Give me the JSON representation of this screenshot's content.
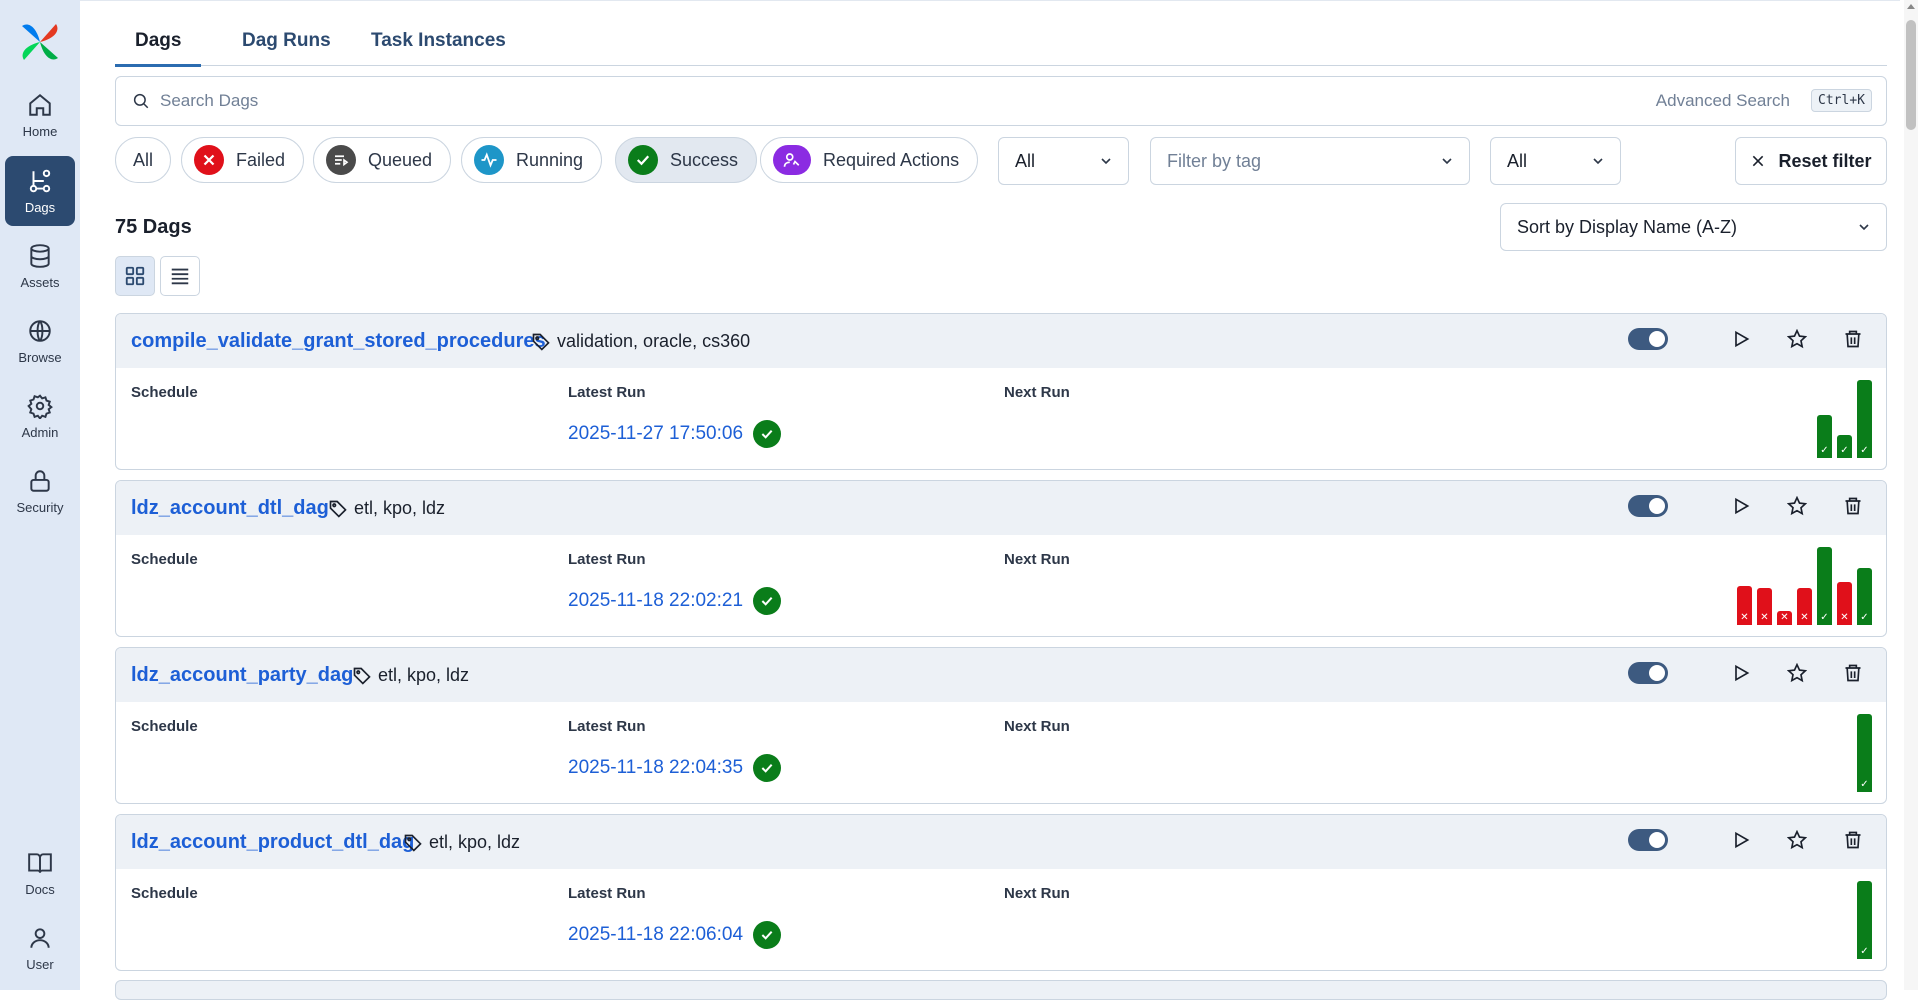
{
  "sidebar": {
    "logo": "airflow-logo",
    "items": [
      {
        "label": "Home",
        "icon": "home-icon"
      },
      {
        "label": "Dags",
        "icon": "dags-icon",
        "active": true
      },
      {
        "label": "Assets",
        "icon": "database-icon"
      },
      {
        "label": "Browse",
        "icon": "globe-icon"
      },
      {
        "label": "Admin",
        "icon": "gear-icon"
      },
      {
        "label": "Security",
        "icon": "lock-icon"
      }
    ],
    "bottom_items": [
      {
        "label": "Docs",
        "icon": "book-icon"
      },
      {
        "label": "User",
        "icon": "user-icon"
      }
    ]
  },
  "tabs": [
    {
      "label": "Dags",
      "active": true
    },
    {
      "label": "Dag Runs"
    },
    {
      "label": "Task Instances"
    }
  ],
  "search": {
    "placeholder": "Search Dags",
    "advanced_label": "Advanced Search",
    "shortcut": "Ctrl+K"
  },
  "filters": {
    "state_pills": [
      {
        "label": "All"
      },
      {
        "label": "Failed",
        "color": "#e0101a",
        "icon": "x-circle-icon"
      },
      {
        "label": "Queued",
        "color": "#4a4a4a",
        "icon": "queue-icon"
      },
      {
        "label": "Running",
        "color": "#1e96c8",
        "icon": "activity-icon"
      },
      {
        "label": "Success",
        "color": "#0a7d1a",
        "icon": "check-icon",
        "selected": true
      },
      {
        "label": "Required Actions",
        "color": "#8b2be2",
        "icon": "user-action-icon"
      }
    ],
    "paused_select": "All",
    "tag_select_placeholder": "Filter by tag",
    "tag_mode_select": "All",
    "reset_label": "Reset filter"
  },
  "dag_count": "75 Dags",
  "sort_label": "Sort by Display Name (A-Z)",
  "column_labels": {
    "schedule": "Schedule",
    "latest_run": "Latest Run",
    "next_run": "Next Run"
  },
  "dags": [
    {
      "name": "compile_validate_grant_stored_procedures",
      "tags": "validation, oracle, cs360",
      "latest_run": "2025-11-27 17:50:06",
      "latest_state": "success",
      "recent_runs": [
        {
          "state": "success",
          "duration_rel": 0.55
        },
        {
          "state": "success",
          "duration_rel": 0.3
        },
        {
          "state": "success",
          "duration_rel": 1.0
        }
      ]
    },
    {
      "name": "ldz_account_dtl_dag",
      "tags": "etl, kpo, ldz",
      "latest_run": "2025-11-18 22:02:21",
      "latest_state": "success",
      "recent_runs": [
        {
          "state": "failed",
          "duration_rel": 0.5
        },
        {
          "state": "failed",
          "duration_rel": 0.48
        },
        {
          "state": "failed",
          "duration_rel": 0.16
        },
        {
          "state": "failed",
          "duration_rel": 0.47
        },
        {
          "state": "success",
          "duration_rel": 1.0
        },
        {
          "state": "failed",
          "duration_rel": 0.55
        },
        {
          "state": "success",
          "duration_rel": 0.73
        }
      ]
    },
    {
      "name": "ldz_account_party_dag",
      "tags": "etl, kpo, ldz",
      "latest_run": "2025-11-18 22:04:35",
      "latest_state": "success",
      "recent_runs": [
        {
          "state": "success",
          "duration_rel": 1.0
        }
      ]
    },
    {
      "name": "ldz_account_product_dtl_dag",
      "tags": "etl, kpo, ldz",
      "latest_run": "2025-11-18 22:06:04",
      "latest_state": "success",
      "recent_runs": [
        {
          "state": "success",
          "duration_rel": 1.0
        }
      ]
    }
  ]
}
